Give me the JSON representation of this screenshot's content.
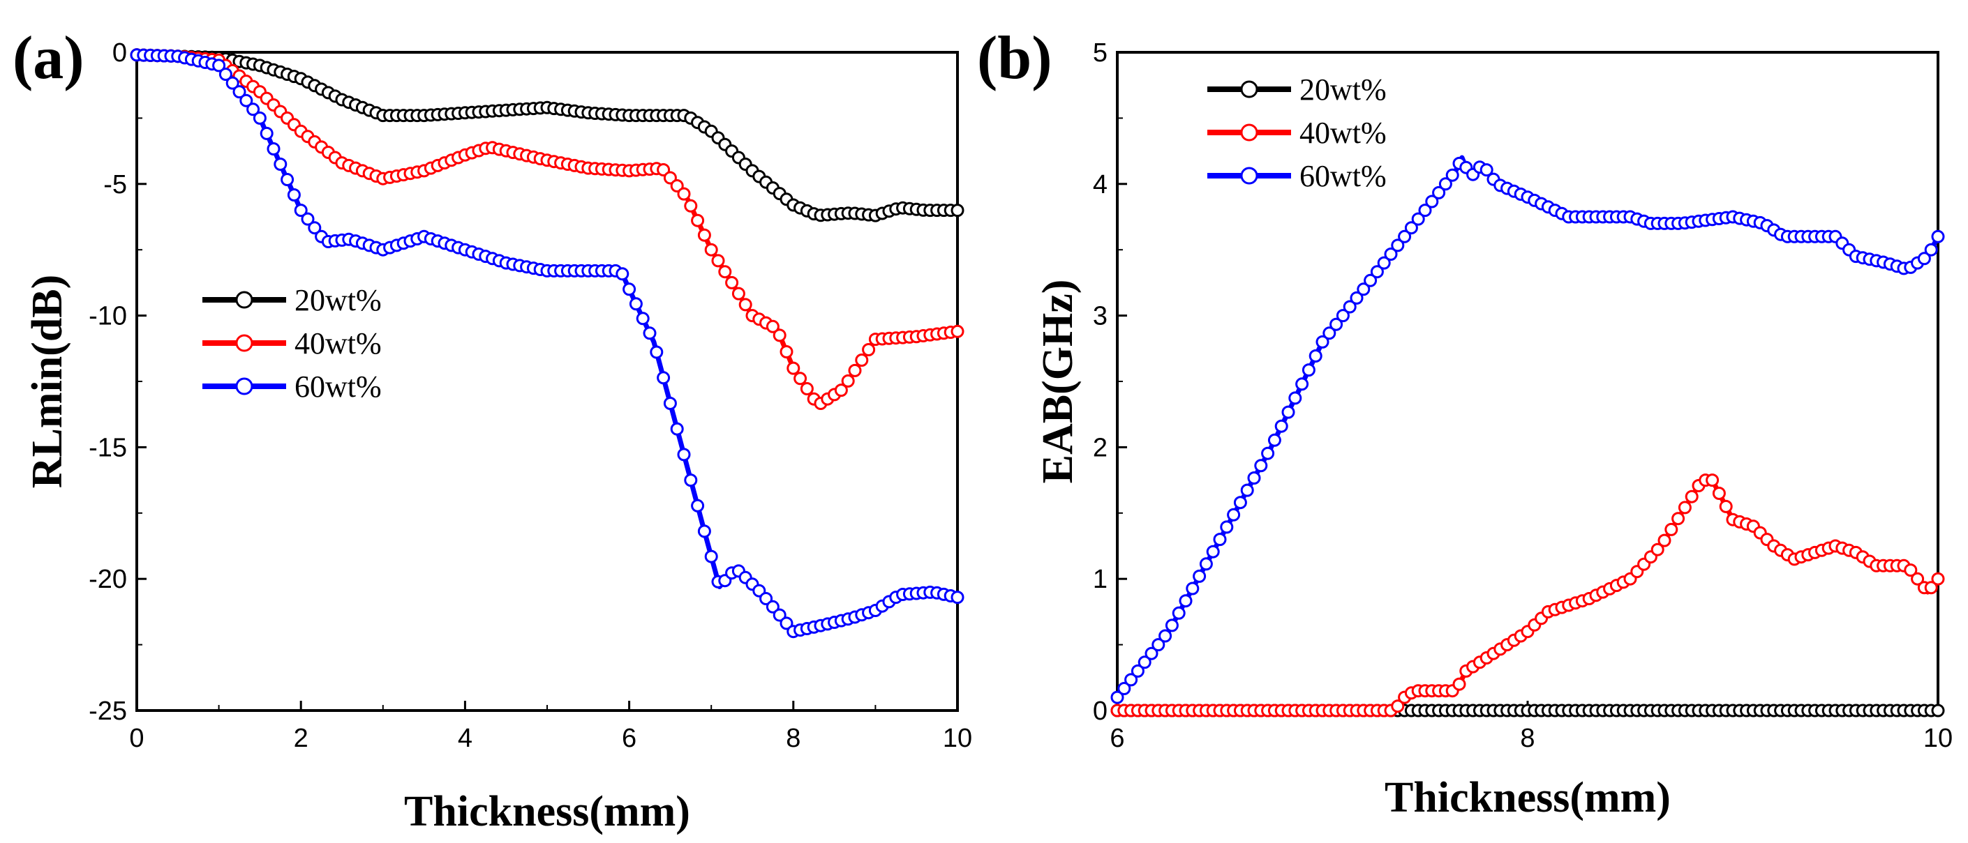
{
  "chart_data": [
    {
      "panel_label": "(a)",
      "type": "line",
      "xlabel": "Thickness(mm)",
      "ylabel": "RLmin(dB)",
      "xlim": [
        0,
        10
      ],
      "ylim": [
        -25,
        0
      ],
      "xticks": [
        0,
        2,
        4,
        6,
        8,
        10
      ],
      "xtick_labels": [
        "0",
        "2",
        "4",
        "6",
        "8",
        "10"
      ],
      "yticks": [
        0,
        -5,
        -10,
        -15,
        -20,
        -25
      ],
      "ytick_labels": [
        "0",
        "-5",
        "-10",
        "-15",
        "-20",
        "-25"
      ],
      "grid": false,
      "legend_position": "center-left",
      "series": [
        {
          "name": "20wt%",
          "color": "#000000",
          "points": [
            [
              0,
              -0.1
            ],
            [
              0.5,
              -0.15
            ],
            [
              1.0,
              -0.2
            ],
            [
              1.5,
              -0.5
            ],
            [
              2.0,
              -1.0
            ],
            [
              2.5,
              -1.8
            ],
            [
              3.0,
              -2.4
            ],
            [
              3.5,
              -2.4
            ],
            [
              4.0,
              -2.3
            ],
            [
              4.5,
              -2.2
            ],
            [
              5.0,
              -2.1
            ],
            [
              5.5,
              -2.3
            ],
            [
              6.0,
              -2.4
            ],
            [
              6.5,
              -2.4
            ],
            [
              6.7,
              -2.4
            ],
            [
              7.0,
              -3.0
            ],
            [
              7.5,
              -4.5
            ],
            [
              8.0,
              -5.8
            ],
            [
              8.3,
              -6.2
            ],
            [
              8.7,
              -6.1
            ],
            [
              9.0,
              -6.2
            ],
            [
              9.3,
              -5.9
            ],
            [
              9.6,
              -6.0
            ],
            [
              10.0,
              -6.0
            ]
          ]
        },
        {
          "name": "40wt%",
          "color": "#ff0000",
          "points": [
            [
              0,
              -0.1
            ],
            [
              0.5,
              -0.15
            ],
            [
              1.0,
              -0.3
            ],
            [
              1.5,
              -1.5
            ],
            [
              2.0,
              -3.0
            ],
            [
              2.5,
              -4.2
            ],
            [
              3.0,
              -4.8
            ],
            [
              3.5,
              -4.5
            ],
            [
              4.0,
              -3.9
            ],
            [
              4.3,
              -3.6
            ],
            [
              5.0,
              -4.1
            ],
            [
              5.5,
              -4.4
            ],
            [
              6.0,
              -4.5
            ],
            [
              6.4,
              -4.4
            ],
            [
              6.7,
              -5.5
            ],
            [
              7.0,
              -7.5
            ],
            [
              7.5,
              -10.0
            ],
            [
              7.8,
              -10.5
            ],
            [
              8.0,
              -12.0
            ],
            [
              8.3,
              -13.4
            ],
            [
              8.6,
              -12.8
            ],
            [
              9.0,
              -10.9
            ],
            [
              9.5,
              -10.8
            ],
            [
              10.0,
              -10.6
            ]
          ]
        },
        {
          "name": "60wt%",
          "color": "#0000ff",
          "points": [
            [
              0,
              -0.1
            ],
            [
              0.5,
              -0.15
            ],
            [
              1.0,
              -0.5
            ],
            [
              1.5,
              -2.5
            ],
            [
              2.0,
              -6.0
            ],
            [
              2.3,
              -7.2
            ],
            [
              2.6,
              -7.1
            ],
            [
              3.0,
              -7.5
            ],
            [
              3.5,
              -7.0
            ],
            [
              4.0,
              -7.5
            ],
            [
              4.5,
              -8.0
            ],
            [
              5.0,
              -8.3
            ],
            [
              5.5,
              -8.3
            ],
            [
              5.9,
              -8.3
            ],
            [
              6.0,
              -9.0
            ],
            [
              6.3,
              -11.0
            ],
            [
              6.6,
              -14.5
            ],
            [
              6.9,
              -18.0
            ],
            [
              7.1,
              -20.3
            ],
            [
              7.3,
              -19.6
            ],
            [
              7.6,
              -20.5
            ],
            [
              8.0,
              -22.0
            ],
            [
              8.3,
              -21.8
            ],
            [
              8.7,
              -21.5
            ],
            [
              9.0,
              -21.2
            ],
            [
              9.3,
              -20.6
            ],
            [
              9.7,
              -20.5
            ],
            [
              10.0,
              -20.7
            ]
          ]
        }
      ]
    },
    {
      "panel_label": "(b)",
      "type": "line",
      "xlabel": "Thickness(mm)",
      "ylabel": "EAB(GHz)",
      "xlim": [
        6,
        10
      ],
      "ylim": [
        0,
        5
      ],
      "xticks": [
        6,
        8,
        10
      ],
      "xtick_labels": [
        "6",
        "8",
        "10"
      ],
      "yticks": [
        0,
        1,
        2,
        3,
        4,
        5
      ],
      "ytick_labels": [
        "0",
        "1",
        "2",
        "3",
        "4",
        "5"
      ],
      "grid": false,
      "legend_position": "top-left",
      "series": [
        {
          "name": "20wt%",
          "color": "#000000",
          "points": [
            [
              6.0,
              0.0
            ],
            [
              10.0,
              0.0
            ]
          ]
        },
        {
          "name": "40wt%",
          "color": "#ff0000",
          "points": [
            [
              6.0,
              0.0
            ],
            [
              7.35,
              0.0
            ],
            [
              7.4,
              0.1
            ],
            [
              7.45,
              0.15
            ],
            [
              7.65,
              0.15
            ],
            [
              7.7,
              0.3
            ],
            [
              7.8,
              0.4
            ],
            [
              8.0,
              0.6
            ],
            [
              8.1,
              0.75
            ],
            [
              8.3,
              0.85
            ],
            [
              8.5,
              1.0
            ],
            [
              8.65,
              1.25
            ],
            [
              8.75,
              1.5
            ],
            [
              8.85,
              1.75
            ],
            [
              8.9,
              1.75
            ],
            [
              8.95,
              1.6
            ],
            [
              9.0,
              1.45
            ],
            [
              9.1,
              1.4
            ],
            [
              9.2,
              1.25
            ],
            [
              9.3,
              1.15
            ],
            [
              9.4,
              1.2
            ],
            [
              9.5,
              1.25
            ],
            [
              9.6,
              1.2
            ],
            [
              9.7,
              1.1
            ],
            [
              9.85,
              1.1
            ],
            [
              9.95,
              0.9
            ],
            [
              10.0,
              1.0
            ]
          ]
        },
        {
          "name": "60wt%",
          "color": "#0000ff",
          "points": [
            [
              6.0,
              0.1
            ],
            [
              6.25,
              0.6
            ],
            [
              6.5,
              1.3
            ],
            [
              6.75,
              2.0
            ],
            [
              7.0,
              2.8
            ],
            [
              7.25,
              3.3
            ],
            [
              7.5,
              3.8
            ],
            [
              7.65,
              4.1
            ],
            [
              7.68,
              4.2
            ],
            [
              7.72,
              4.05
            ],
            [
              7.78,
              4.15
            ],
            [
              7.85,
              4.0
            ],
            [
              8.0,
              3.9
            ],
            [
              8.2,
              3.75
            ],
            [
              8.5,
              3.75
            ],
            [
              8.6,
              3.7
            ],
            [
              8.75,
              3.7
            ],
            [
              9.0,
              3.75
            ],
            [
              9.15,
              3.7
            ],
            [
              9.25,
              3.6
            ],
            [
              9.5,
              3.6
            ],
            [
              9.6,
              3.45
            ],
            [
              9.75,
              3.4
            ],
            [
              9.85,
              3.35
            ],
            [
              9.95,
              3.45
            ],
            [
              10.0,
              3.6
            ]
          ]
        }
      ]
    }
  ]
}
